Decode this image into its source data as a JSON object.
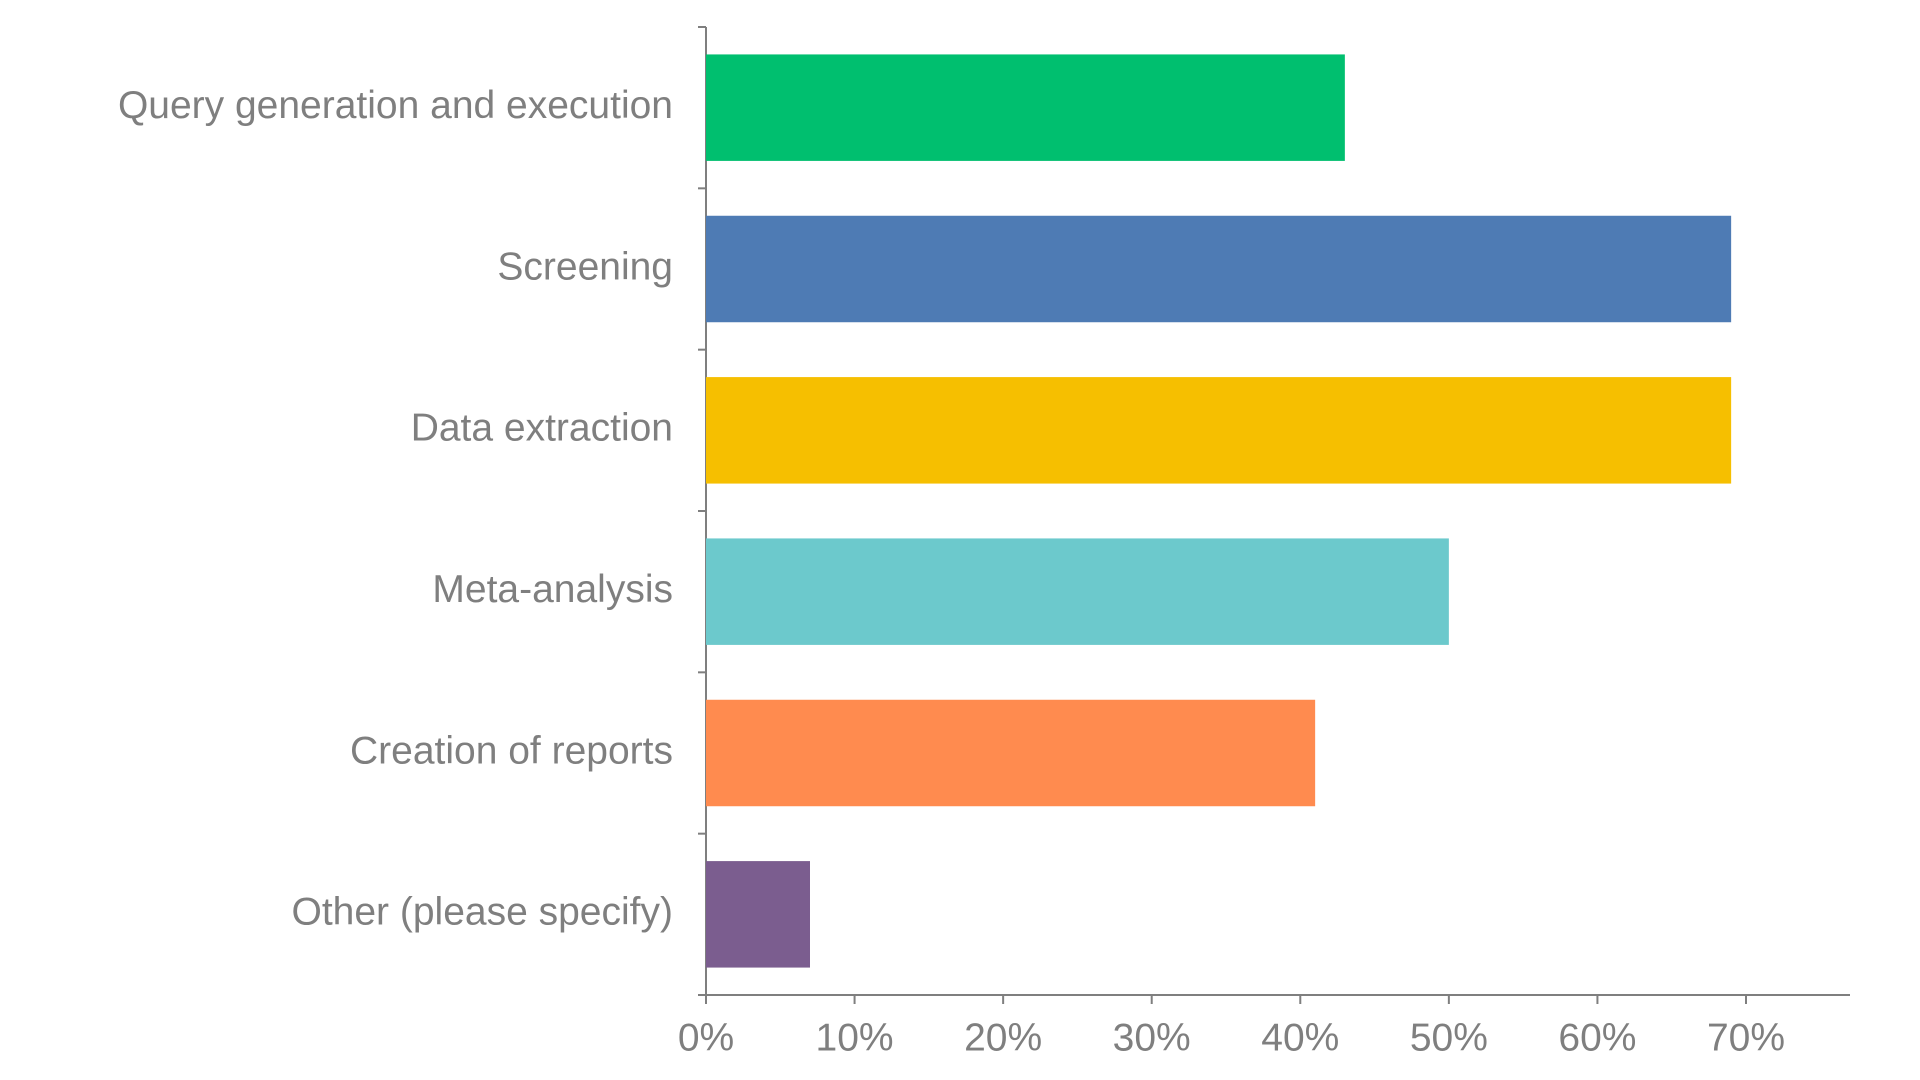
{
  "chart_data": {
    "type": "bar",
    "orientation": "horizontal",
    "categories": [
      "Query generation and execution",
      "Screening",
      "Data extraction",
      "Meta-analysis",
      "Creation of reports",
      "Other (please specify)"
    ],
    "values": [
      43,
      69,
      69,
      50,
      41,
      7
    ],
    "colors": [
      "#00bf6f",
      "#4e7bb4",
      "#f6bf00",
      "#6cc9cc",
      "#ff8b4f",
      "#7b5d8f"
    ],
    "xlim": [
      0,
      77
    ],
    "xticks": [
      {
        "value": 0,
        "label": "0%"
      },
      {
        "value": 10,
        "label": "10%"
      },
      {
        "value": 20,
        "label": "20%"
      },
      {
        "value": 30,
        "label": "30%"
      },
      {
        "value": 40,
        "label": "40%"
      },
      {
        "value": 50,
        "label": "50%"
      },
      {
        "value": 60,
        "label": "60%"
      },
      {
        "value": 70,
        "label": "70%"
      }
    ],
    "grid": false
  }
}
